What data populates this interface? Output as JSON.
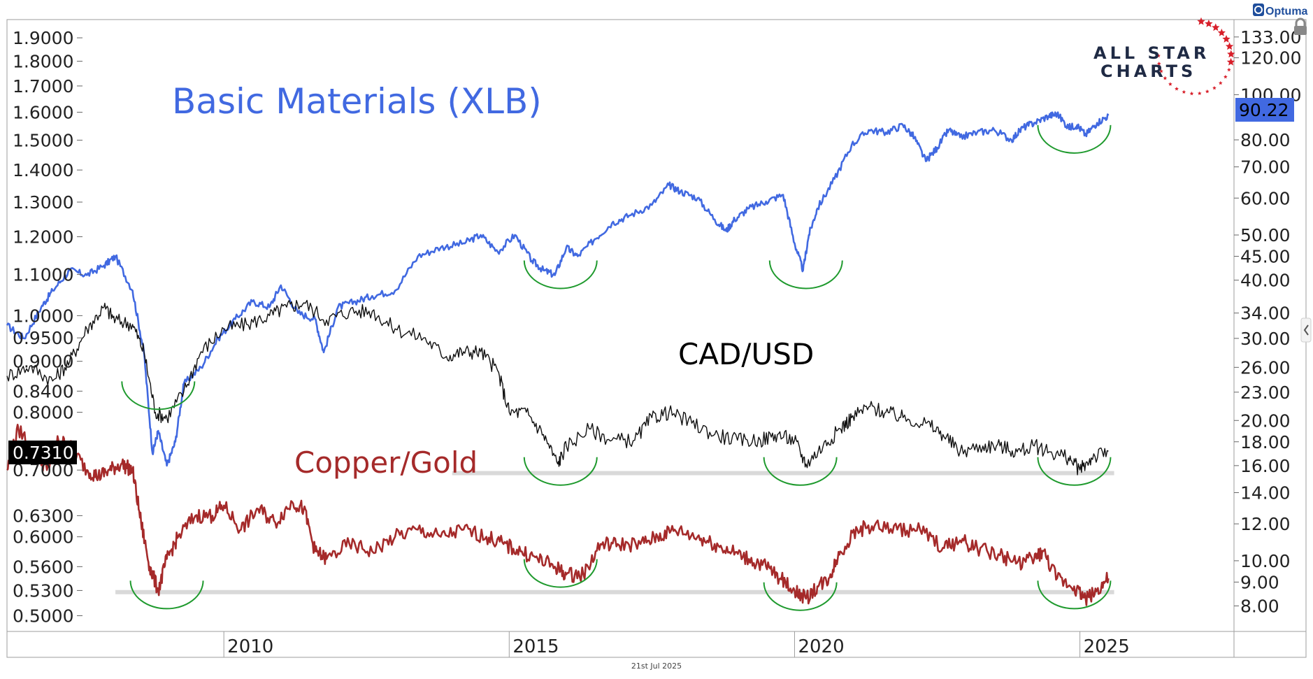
{
  "header": {
    "provider": "Optuma",
    "brand_line1": "ALL STAR",
    "brand_line2": "CHARTS",
    "lock_icon": "lock-icon",
    "collapse_icon": "chevron-left-icon"
  },
  "footer": {
    "date": "21st Jul 2025"
  },
  "chart_data": {
    "type": "line",
    "x_label": "",
    "x_ticks": [
      "2010",
      "2015",
      "2020",
      "2025"
    ],
    "x_range": [
      2006.2,
      2027.7
    ],
    "grid": false,
    "left_axis": {
      "scale": "log",
      "range": [
        0.49,
        1.95
      ],
      "ticks": [
        "1.9000",
        "1.8000",
        "1.7000",
        "1.6000",
        "1.5000",
        "1.4000",
        "1.3000",
        "1.2000",
        "1.1000",
        "1.0000",
        "0.9500",
        "0.9000",
        "0.8400",
        "0.8000",
        "0.7000",
        "0.6300",
        "0.6000",
        "0.5600",
        "0.5300",
        "0.5000"
      ],
      "last_value_label": "0.7310"
    },
    "right_axis": {
      "scale": "log",
      "range": [
        7.3,
        140
      ],
      "ticks": [
        "133.00",
        "120.00",
        "100.00",
        "80.00",
        "70.00",
        "60.00",
        "50.00",
        "45.00",
        "40.00",
        "34.00",
        "30.00",
        "26.00",
        "23.00",
        "20.00",
        "18.00",
        "16.00",
        "14.00",
        "12.00",
        "10.00",
        "9.00",
        "8.00"
      ],
      "last_value_label": "90.22"
    },
    "series": [
      {
        "name": "Basic Materials (XLB)",
        "axis": "right",
        "color": "#4169E1",
        "x": [
          2006.2,
          2006.5,
          2006.8,
          2007.0,
          2007.3,
          2007.6,
          2007.9,
          2008.1,
          2008.4,
          2008.6,
          2008.75,
          2008.85,
          2009.0,
          2009.15,
          2009.3,
          2009.6,
          2009.9,
          2010.2,
          2010.5,
          2010.8,
          2011.0,
          2011.3,
          2011.6,
          2011.75,
          2012.0,
          2012.3,
          2012.6,
          2013.0,
          2013.4,
          2013.8,
          2014.2,
          2014.5,
          2014.8,
          2015.1,
          2015.4,
          2015.6,
          2015.8,
          2016.0,
          2016.2,
          2016.5,
          2016.8,
          2017.1,
          2017.5,
          2017.8,
          2018.0,
          2018.3,
          2018.6,
          2018.8,
          2018.95,
          2019.2,
          2019.5,
          2019.8,
          2020.0,
          2020.15,
          2020.25,
          2020.4,
          2020.7,
          2021.0,
          2021.3,
          2021.6,
          2021.9,
          2022.1,
          2022.3,
          2022.5,
          2022.7,
          2022.9,
          2023.2,
          2023.5,
          2023.8,
          2024.0,
          2024.2,
          2024.45,
          2024.6,
          2024.8,
          2024.95,
          2025.1,
          2025.3,
          2025.5
        ],
        "values": [
          32,
          30,
          35,
          38,
          42,
          41,
          43,
          45,
          38,
          28,
          17,
          19,
          16,
          18,
          24,
          26,
          30,
          33,
          36,
          35,
          39,
          34,
          33,
          28,
          35,
          36,
          37,
          38,
          45,
          47,
          48,
          50,
          46,
          50,
          44,
          42,
          41,
          47,
          45,
          49,
          53,
          55,
          58,
          64,
          62,
          60,
          54,
          51,
          54,
          57,
          59,
          61,
          48,
          42,
          50,
          57,
          66,
          78,
          84,
          83,
          86,
          81,
          72,
          77,
          84,
          81,
          83,
          84,
          80,
          85,
          87,
          90,
          91,
          85,
          86,
          82,
          87,
          90.22
        ]
      },
      {
        "name": "CAD/USD",
        "axis": "left",
        "color": "#111111",
        "x": [
          2006.2,
          2006.6,
          2007.0,
          2007.3,
          2007.6,
          2007.9,
          2008.1,
          2008.4,
          2008.6,
          2008.8,
          2009.0,
          2009.3,
          2009.6,
          2010.0,
          2010.4,
          2010.8,
          2011.1,
          2011.4,
          2011.8,
          2012.2,
          2012.6,
          2013.0,
          2013.5,
          2013.9,
          2014.2,
          2014.5,
          2014.8,
          2015.0,
          2015.3,
          2015.6,
          2015.85,
          2016.0,
          2016.4,
          2016.8,
          2017.2,
          2017.5,
          2017.8,
          2018.2,
          2018.6,
          2019.0,
          2019.4,
          2019.7,
          2020.0,
          2020.2,
          2020.5,
          2020.8,
          2021.0,
          2021.3,
          2021.6,
          2021.9,
          2022.3,
          2022.6,
          2022.9,
          2023.3,
          2023.6,
          2023.9,
          2024.2,
          2024.5,
          2024.8,
          2025.0,
          2025.2,
          2025.5
        ],
        "values": [
          0.87,
          0.89,
          0.86,
          0.9,
          0.97,
          1.02,
          0.99,
          0.98,
          0.92,
          0.8,
          0.79,
          0.84,
          0.92,
          0.97,
          0.98,
          1.0,
          1.02,
          1.03,
          0.99,
          1.01,
          1.01,
          0.97,
          0.95,
          0.91,
          0.92,
          0.92,
          0.88,
          0.8,
          0.8,
          0.76,
          0.71,
          0.74,
          0.77,
          0.75,
          0.75,
          0.79,
          0.8,
          0.78,
          0.76,
          0.75,
          0.75,
          0.76,
          0.75,
          0.71,
          0.74,
          0.77,
          0.79,
          0.81,
          0.8,
          0.79,
          0.78,
          0.76,
          0.73,
          0.74,
          0.74,
          0.73,
          0.74,
          0.73,
          0.72,
          0.7,
          0.72,
          0.731
        ]
      },
      {
        "name": "Copper/Gold",
        "axis": "left",
        "color": "#A52A2A",
        "x": [
          2006.2,
          2006.4,
          2006.7,
          2006.9,
          2007.1,
          2007.3,
          2007.6,
          2007.8,
          2008.0,
          2008.2,
          2008.4,
          2008.55,
          2008.7,
          2008.85,
          2009.0,
          2009.2,
          2009.5,
          2009.8,
          2010.0,
          2010.3,
          2010.6,
          2010.9,
          2011.2,
          2011.4,
          2011.6,
          2011.8,
          2012.2,
          2012.6,
          2013.0,
          2013.4,
          2013.8,
          2014.2,
          2014.6,
          2014.9,
          2015.2,
          2015.5,
          2015.8,
          2016.0,
          2016.3,
          2016.6,
          2016.9,
          2017.3,
          2017.6,
          2017.9,
          2018.3,
          2018.6,
          2018.9,
          2019.2,
          2019.5,
          2019.75,
          2020.0,
          2020.2,
          2020.4,
          2020.6,
          2020.8,
          2021.1,
          2021.4,
          2021.8,
          2022.2,
          2022.6,
          2022.9,
          2023.2,
          2023.6,
          2023.9,
          2024.2,
          2024.35,
          2024.6,
          2024.9,
          2025.1,
          2025.3,
          2025.5
        ],
        "values": [
          0.7,
          0.77,
          0.73,
          0.7,
          0.75,
          0.74,
          0.7,
          0.69,
          0.7,
          0.71,
          0.7,
          0.62,
          0.56,
          0.53,
          0.57,
          0.6,
          0.63,
          0.63,
          0.645,
          0.61,
          0.64,
          0.62,
          0.65,
          0.64,
          0.58,
          0.57,
          0.59,
          0.58,
          0.6,
          0.61,
          0.6,
          0.61,
          0.6,
          0.59,
          0.58,
          0.57,
          0.56,
          0.55,
          0.55,
          0.59,
          0.59,
          0.59,
          0.6,
          0.61,
          0.6,
          0.59,
          0.58,
          0.57,
          0.56,
          0.545,
          0.53,
          0.52,
          0.535,
          0.545,
          0.58,
          0.61,
          0.615,
          0.61,
          0.61,
          0.585,
          0.595,
          0.585,
          0.575,
          0.565,
          0.57,
          0.58,
          0.545,
          0.535,
          0.52,
          0.53,
          0.545
        ]
      }
    ],
    "annotations": [
      {
        "text": "Basic Materials (XLB)",
        "color": "#4169E1"
      },
      {
        "text": "CAD/USD",
        "color": "#000000"
      },
      {
        "text": "Copper/Gold",
        "color": "#A52A2A"
      }
    ],
    "support_lines": [
      {
        "axis": "left",
        "value": 0.695,
        "x_start": 2014.0,
        "x_end": 2025.6,
        "color": "#d9d9d9"
      },
      {
        "axis": "left",
        "value": 0.528,
        "x_start": 2008.1,
        "x_end": 2025.6,
        "color": "#d9d9d9"
      }
    ],
    "bottom_arcs": [
      {
        "x": 2008.85,
        "value": 0.84
      },
      {
        "x": 2009.0,
        "value": 0.53
      },
      {
        "axis": "right",
        "x": 2015.9,
        "value": 42
      },
      {
        "x": 2015.9,
        "value": 0.705
      },
      {
        "x": 2015.9,
        "value": 0.557
      },
      {
        "axis": "right",
        "x": 2020.2,
        "value": 42
      },
      {
        "x": 2020.1,
        "value": 0.705
      },
      {
        "x": 2020.1,
        "value": 0.528
      },
      {
        "axis": "right",
        "x": 2024.9,
        "value": 82
      },
      {
        "x": 2024.9,
        "value": 0.705
      },
      {
        "x": 2024.9,
        "value": 0.53
      }
    ]
  }
}
